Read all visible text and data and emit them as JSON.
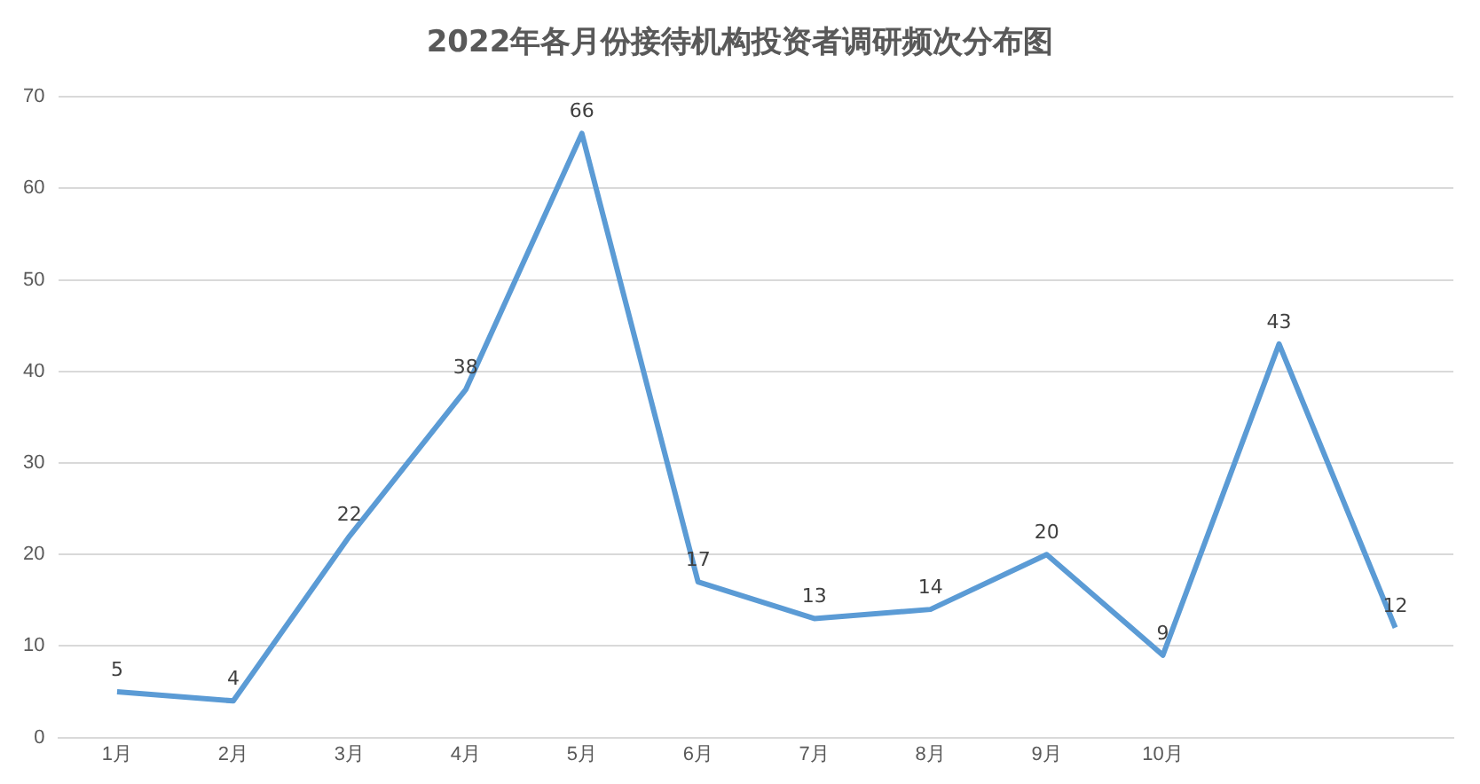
{
  "chart_data": {
    "type": "line",
    "title": "2022年各月份接待机构投资者调研频次分布图",
    "categories": [
      "1月",
      "2月",
      "3月",
      "4月",
      "5月",
      "6月",
      "7月",
      "8月",
      "9月",
      "10月",
      null,
      null
    ],
    "series": [
      {
        "color": "#5b9bd5",
        "values": [
          5,
          4,
          22,
          38,
          66,
          17,
          13,
          14,
          20,
          9,
          43,
          12
        ]
      }
    ],
    "ylim": [
      0,
      70
    ],
    "yticks": [
      0,
      10,
      20,
      30,
      40,
      50,
      60,
      70
    ],
    "grid": "y",
    "legend": false,
    "marker": "none",
    "line_style": "solid",
    "data_labels": true
  }
}
